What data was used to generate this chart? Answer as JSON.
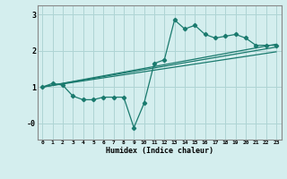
{
  "title": "",
  "xlabel": "Humidex (Indice chaleur)",
  "background_color": "#d4eeee",
  "grid_color": "#aed4d4",
  "line_color": "#1a7a6e",
  "xlim": [
    -0.5,
    23.5
  ],
  "ylim": [
    -0.45,
    3.25
  ],
  "yticks": [
    0,
    1,
    2,
    3
  ],
  "ytick_labels": [
    "-0",
    "1",
    "2",
    "3"
  ],
  "xticks": [
    0,
    1,
    2,
    3,
    4,
    5,
    6,
    7,
    8,
    9,
    10,
    11,
    12,
    13,
    14,
    15,
    16,
    17,
    18,
    19,
    20,
    21,
    22,
    23
  ],
  "series1_x": [
    0,
    1,
    2,
    3,
    4,
    5,
    6,
    7,
    8,
    9,
    10,
    11,
    12,
    13,
    14,
    15,
    16,
    17,
    18,
    19,
    20,
    21,
    22,
    23
  ],
  "series1_y": [
    1.0,
    1.1,
    1.05,
    0.75,
    0.65,
    0.65,
    0.72,
    0.72,
    0.72,
    -0.12,
    0.55,
    1.65,
    1.75,
    2.85,
    2.6,
    2.7,
    2.45,
    2.35,
    2.4,
    2.45,
    2.35,
    2.15,
    2.15,
    2.15
  ],
  "line2_x": [
    0,
    23
  ],
  "line2_y": [
    1.0,
    2.18
  ],
  "line3_x": [
    0,
    23
  ],
  "line3_y": [
    1.0,
    2.1
  ],
  "line4_x": [
    0,
    23
  ],
  "line4_y": [
    1.0,
    1.97
  ]
}
